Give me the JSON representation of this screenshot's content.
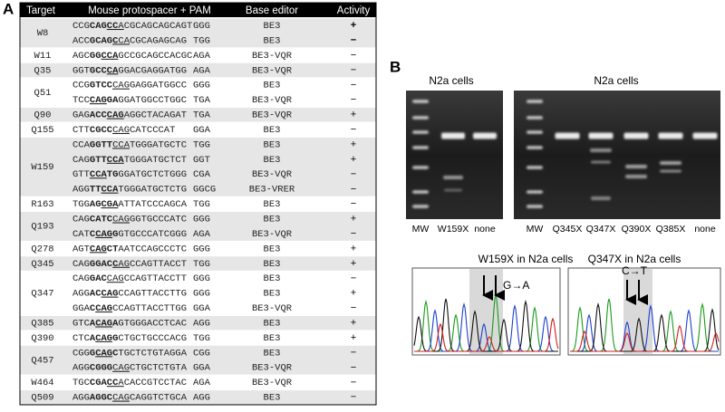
{
  "panel_labels": [
    "A",
    "B"
  ],
  "table": {
    "header": [
      "Target",
      "Mouse protospacer + PAM",
      "Base editor",
      "Activity"
    ],
    "rows": [
      {
        "target": "W8",
        "seqs": [
          {
            "spacer": [
              [
                "CCG",
                ""
              ],
              [
                "CAG",
                "b"
              ],
              [
                "CC",
                "bu"
              ],
              [
                "A",
                "u"
              ],
              [
                "CGCAGCAGCAGT",
                ""
              ]
            ],
            "pam": "GGG",
            "editor": "BE3",
            "activity": "+"
          },
          {
            "spacer": [
              [
                "ACC",
                ""
              ],
              [
                "GCAG",
                "b"
              ],
              [
                "C",
                "bu"
              ],
              [
                "CA",
                "u"
              ],
              [
                "CGCAGAGCAG",
                ""
              ]
            ],
            "pam": "TGG",
            "editor": "BE3",
            "activity": "−"
          }
        ]
      },
      {
        "target": "W11",
        "seqs": [
          {
            "spacer": [
              [
                "AGC",
                ""
              ],
              [
                "GG",
                "b"
              ],
              [
                "CCA",
                "bu"
              ],
              [
                "GCCGCAGCCACGC",
                ""
              ]
            ],
            "pam": "AGA",
            "editor": "BE3-VQR",
            "activity": "−"
          }
        ]
      },
      {
        "target": "Q35",
        "seqs": [
          {
            "spacer": [
              [
                "GGT",
                ""
              ],
              [
                "GCC",
                "b"
              ],
              [
                "CA",
                "bu"
              ],
              [
                "GGACGAGGATGG",
                ""
              ]
            ],
            "pam": "AGA",
            "editor": "BE3-VQR",
            "activity": "−"
          }
        ]
      },
      {
        "target": "Q51",
        "seqs": [
          {
            "spacer": [
              [
                "CCG",
                ""
              ],
              [
                "GTCC",
                "b"
              ],
              [
                "CAG",
                "u"
              ],
              [
                "GAGGATGGCC",
                ""
              ]
            ],
            "pam": "GGG",
            "editor": "BE3",
            "activity": "−"
          },
          {
            "spacer": [
              [
                "TCC",
                ""
              ],
              [
                "CAG",
                "bu"
              ],
              [
                "GA",
                "b"
              ],
              [
                "GGATGGCCTGGC",
                ""
              ]
            ],
            "pam": "TGA",
            "editor": "BE3-VQR",
            "activity": "−"
          }
        ]
      },
      {
        "target": "Q90",
        "seqs": [
          {
            "spacer": [
              [
                "GAG",
                ""
              ],
              [
                "ACC",
                "b"
              ],
              [
                "CAG",
                "bu"
              ],
              [
                "AGGCTACAGAT",
                ""
              ]
            ],
            "pam": "TGA",
            "editor": "BE3-VQR",
            "activity": "+"
          }
        ]
      },
      {
        "target": "Q155",
        "seqs": [
          {
            "spacer": [
              [
                "CTT",
                ""
              ],
              [
                "CGCC",
                "b"
              ],
              [
                "CAG",
                "u"
              ],
              [
                "CATCCCAT",
                ""
              ]
            ],
            "pam": "GGA",
            "editor": "BE3",
            "activity": "−"
          }
        ]
      },
      {
        "target": "W159",
        "seqs": [
          {
            "spacer": [
              [
                "CCA",
                ""
              ],
              [
                "GGTT",
                "b"
              ],
              [
                "CCA",
                "u"
              ],
              [
                "TGGGATGCTC",
                ""
              ]
            ],
            "pam": "TGG",
            "editor": "BE3",
            "activity": "+"
          },
          {
            "spacer": [
              [
                "CAG",
                ""
              ],
              [
                "GTT",
                "b"
              ],
              [
                "CCA",
                "bu"
              ],
              [
                "TGGGATGCTCT",
                ""
              ]
            ],
            "pam": "GGT",
            "editor": "BE3",
            "activity": "+"
          },
          {
            "spacer": [
              [
                "GTT",
                ""
              ],
              [
                "CCA",
                "bu"
              ],
              [
                "TG",
                "b"
              ],
              [
                "GGATGCTCTGGG",
                ""
              ]
            ],
            "pam": "CGA",
            "editor": "BE3-VQR",
            "activity": "−"
          },
          {
            "spacer": [
              [
                "AGG",
                ""
              ],
              [
                "TT",
                "b"
              ],
              [
                "CCA",
                "bu"
              ],
              [
                "TGGGATGCTCTG",
                ""
              ]
            ],
            "pam": "GGCG",
            "editor": "BE3-VRER",
            "activity": "−"
          }
        ]
      },
      {
        "target": "R163",
        "seqs": [
          {
            "spacer": [
              [
                "TGG",
                ""
              ],
              [
                "AG",
                "b"
              ],
              [
                "CGA",
                "bu"
              ],
              [
                "ATTATCCCAGCA",
                ""
              ]
            ],
            "pam": "TGG",
            "editor": "BE3",
            "activity": "−"
          }
        ]
      },
      {
        "target": "Q193",
        "seqs": [
          {
            "spacer": [
              [
                "CAG",
                ""
              ],
              [
                "CATC",
                "b"
              ],
              [
                "CAG",
                "u"
              ],
              [
                "GGTGCCCATC",
                ""
              ]
            ],
            "pam": "GGG",
            "editor": "BE3",
            "activity": "+"
          },
          {
            "spacer": [
              [
                "CAT",
                ""
              ],
              [
                "C",
                "b"
              ],
              [
                "CAG",
                "bu"
              ],
              [
                "G",
                "b"
              ],
              [
                "GTGCCCATCGGG",
                ""
              ]
            ],
            "pam": "AGA",
            "editor": "BE3-VQR",
            "activity": "−"
          }
        ]
      },
      {
        "target": "Q278",
        "seqs": [
          {
            "spacer": [
              [
                "AGT",
                ""
              ],
              [
                "CAG",
                "bu"
              ],
              [
                "CT",
                "b"
              ],
              [
                "AATCCAGCCCTC",
                ""
              ]
            ],
            "pam": "GGG",
            "editor": "BE3",
            "activity": "+"
          }
        ]
      },
      {
        "target": "Q345",
        "seqs": [
          {
            "spacer": [
              [
                "CAG",
                ""
              ],
              [
                "GGAC",
                "b"
              ],
              [
                "C",
                "bu"
              ],
              [
                "AG",
                "u"
              ],
              [
                "CCAGTTACCT",
                ""
              ]
            ],
            "pam": "TGG",
            "editor": "BE3",
            "activity": "+"
          }
        ]
      },
      {
        "target": "Q347",
        "seqs": [
          {
            "spacer": [
              [
                "CAG",
                ""
              ],
              [
                "GAC",
                "b"
              ],
              [
                "CAG",
                "u"
              ],
              [
                "CCAGTTACCTT",
                ""
              ]
            ],
            "pam": "GGG",
            "editor": "BE3",
            "activity": "−"
          },
          {
            "spacer": [
              [
                "AGG",
                ""
              ],
              [
                "AC",
                "b"
              ],
              [
                "CAG",
                "bu"
              ],
              [
                "CCAGTTACCTTG",
                ""
              ]
            ],
            "pam": "GGG",
            "editor": "BE3",
            "activity": "+"
          },
          {
            "spacer": [
              [
                "GGA",
                ""
              ],
              [
                "C",
                "b"
              ],
              [
                "CAG",
                "bu"
              ],
              [
                "CCAGTTACCTTGG",
                ""
              ]
            ],
            "pam": "GGA",
            "editor": "BE3-VQR",
            "activity": "−"
          }
        ]
      },
      {
        "target": "Q385",
        "seqs": [
          {
            "spacer": [
              [
                "GTC",
                ""
              ],
              [
                "A",
                "b"
              ],
              [
                "CAG",
                "bu"
              ],
              [
                "A",
                "b"
              ],
              [
                "GTGGGACCTCAC",
                ""
              ]
            ],
            "pam": "AGG",
            "editor": "BE3",
            "activity": "+"
          }
        ]
      },
      {
        "target": "Q390",
        "seqs": [
          {
            "spacer": [
              [
                "CTC",
                ""
              ],
              [
                "A",
                "b"
              ],
              [
                "CAG",
                "bu"
              ],
              [
                "G",
                "b"
              ],
              [
                "CTGCTGCCCACG",
                ""
              ]
            ],
            "pam": "TGG",
            "editor": "BE3",
            "activity": "+"
          }
        ]
      },
      {
        "target": "Q457",
        "seqs": [
          {
            "spacer": [
              [
                "CGG",
                ""
              ],
              [
                "G",
                "b"
              ],
              [
                "CAG",
                "bu"
              ],
              [
                "C",
                "b"
              ],
              [
                "TGCTCTGTAGGA",
                ""
              ]
            ],
            "pam": "CGG",
            "editor": "BE3",
            "activity": "−"
          },
          {
            "spacer": [
              [
                "AGG",
                ""
              ],
              [
                "CGGG",
                "b"
              ],
              [
                "CAG",
                "u"
              ],
              [
                "CTGCTCTGTA",
                ""
              ]
            ],
            "pam": "GGA",
            "editor": "BE3-VQR",
            "activity": "−"
          }
        ]
      },
      {
        "target": "W464",
        "seqs": [
          {
            "spacer": [
              [
                "TGC",
                ""
              ],
              [
                "CGA",
                "b"
              ],
              [
                "CC",
                "bu"
              ],
              [
                "A",
                "u"
              ],
              [
                "CACCGTCCTAC",
                ""
              ]
            ],
            "pam": "AGA",
            "editor": "BE3-VQR",
            "activity": "−"
          }
        ]
      },
      {
        "target": "Q509",
        "seqs": [
          {
            "spacer": [
              [
                "AGG",
                ""
              ],
              [
                "AGGC",
                "b"
              ],
              [
                "CAG",
                "u"
              ],
              [
                "CAGGTCTGCA",
                ""
              ]
            ],
            "pam": "AGG",
            "editor": "BE3",
            "activity": "−"
          }
        ]
      }
    ]
  },
  "gels": [
    {
      "title": "N2a cells",
      "lanes": [
        "MW",
        "W159X",
        "none"
      ]
    },
    {
      "title": "N2a cells",
      "lanes": [
        "MW",
        "Q345X",
        "Q347X",
        "Q390X",
        "Q385X",
        "none"
      ]
    }
  ],
  "chromatograms": [
    {
      "title": "W159X in N2a cells",
      "annotation": "G→A"
    },
    {
      "title": "Q347X in N2a cells",
      "annotation": "C→T"
    }
  ]
}
